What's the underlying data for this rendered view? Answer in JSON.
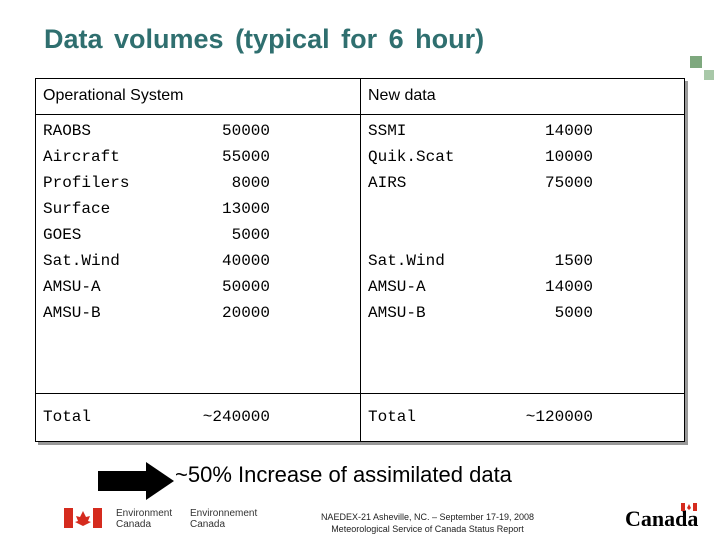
{
  "header": {
    "title": "Data volumes (typical for 6 hour)"
  },
  "table": {
    "columns": [
      "Operational System",
      "New data"
    ],
    "operational": [
      {
        "name": "RAOBS",
        "value": "50000"
      },
      {
        "name": "Aircraft",
        "value": "55000"
      },
      {
        "name": "Profilers",
        "value": "8000"
      },
      {
        "name": "Surface",
        "value": "13000"
      },
      {
        "name": "GOES",
        "value": "5000"
      },
      {
        "name": "Sat.Wind",
        "value": "40000"
      },
      {
        "name": "AMSU-A",
        "value": "50000"
      },
      {
        "name": "AMSU-B",
        "value": "20000"
      }
    ],
    "new_data": [
      [
        {
          "name": "SSMI",
          "value": "14000"
        },
        {
          "name": "Quik.Scat",
          "value": "10000"
        },
        {
          "name": "AIRS",
          "value": "75000"
        }
      ],
      [
        {
          "name": "Sat.Wind",
          "value": "1500"
        },
        {
          "name": "AMSU-A",
          "value": "14000"
        },
        {
          "name": "AMSU-B",
          "value": "5000"
        }
      ]
    ],
    "totals": [
      {
        "name": "Total",
        "value": "~240000"
      },
      {
        "name": "Total",
        "value": "~120000"
      }
    ]
  },
  "conclusion": "~50% Increase of assimilated data",
  "footer": {
    "logo_en": [
      "Environment",
      "Canada"
    ],
    "logo_fr": [
      "Environnement",
      "Canada"
    ],
    "note": [
      "NAEDEX-21 Asheville, NC. – September 17-19, 2008",
      "Meteorological Service of Canada Status Report"
    ],
    "wordmark": "Canada"
  }
}
